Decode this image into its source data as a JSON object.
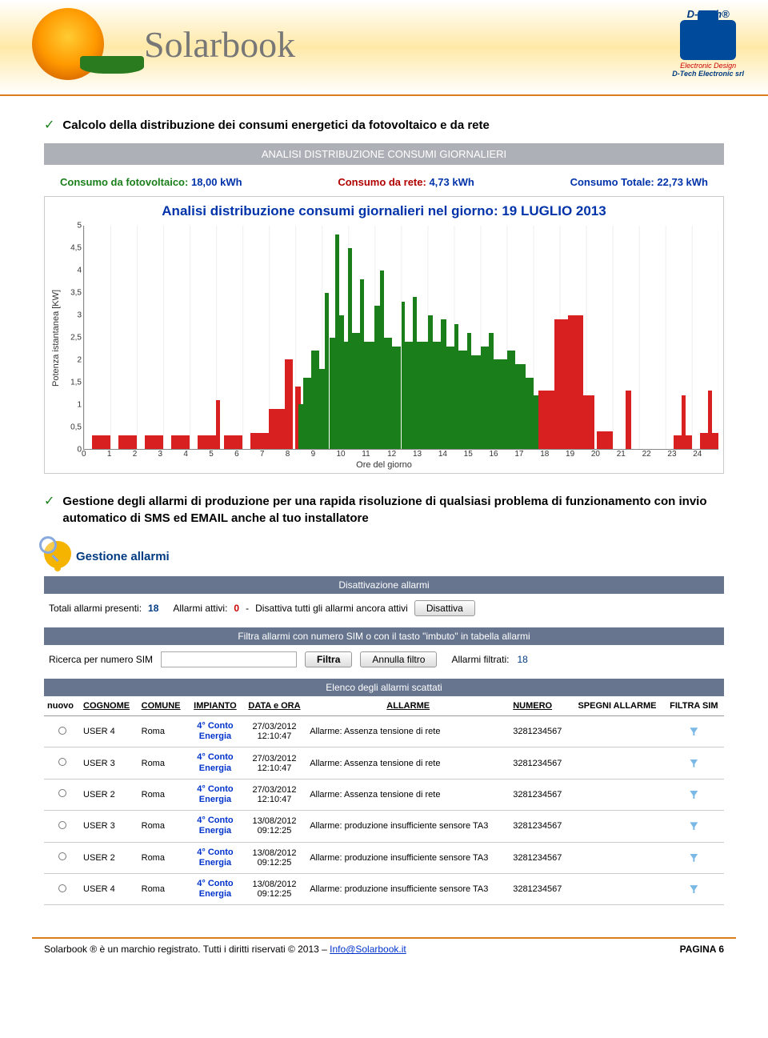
{
  "header": {
    "brand": "Solarbook",
    "right_brand_1": "D-Tech®",
    "right_brand_2": "Electronic Design",
    "right_brand_3": "D-Tech Electronic srl"
  },
  "bullets": {
    "b1": "Calcolo della distribuzione dei consumi energetici da fotovoltaico e da rete",
    "b2": "Gestione degli allarmi di produzione per una rapida risoluzione di qualsiasi problema di funzionamento con invio automatico di SMS ed EMAIL anche al tuo installatore"
  },
  "analysis": {
    "banner": "ANALISI DISTRIBUZIONE CONSUMI GIORNALIERI",
    "pv_label": "Consumo da fotovoltaico:",
    "pv_value": "18,00 kWh",
    "grid_label": "Consumo da rete:",
    "grid_value": "4,73 kWh",
    "total_label": "Consumo Totale:",
    "total_value": "22,73 kWh"
  },
  "chart": {
    "type": "stacked-area-bar",
    "title": "Analisi distribuzione consumi giornalieri nel giorno: 19 LUGLIO 2013",
    "ylabel": "Potenza istantanea [KW]",
    "xlabel": "Ore del giorno",
    "xlim": [
      0,
      24
    ],
    "ylim": [
      0,
      5
    ],
    "ytick_step": 0.5,
    "yticks": [
      "0",
      "0,5",
      "1",
      "1,5",
      "2",
      "2,5",
      "3",
      "3,5",
      "4",
      "4,5",
      "5"
    ],
    "xticks": [
      "0",
      "1",
      "2",
      "3",
      "4",
      "5",
      "6",
      "7",
      "8",
      "9",
      "10",
      "11",
      "12",
      "13",
      "14",
      "15",
      "16",
      "17",
      "18",
      "19",
      "20",
      "21",
      "22",
      "23",
      "24"
    ],
    "grid_color": "#eeeeee",
    "series": [
      {
        "name": "rete",
        "color": "#d82020"
      },
      {
        "name": "fotovoltaico",
        "color": "#1a7f1a"
      }
    ],
    "red_bars": [
      {
        "x": 0.3,
        "w": 0.7,
        "h": 0.3
      },
      {
        "x": 1.3,
        "w": 0.7,
        "h": 0.3
      },
      {
        "x": 2.3,
        "w": 0.7,
        "h": 0.3
      },
      {
        "x": 3.3,
        "w": 0.7,
        "h": 0.3
      },
      {
        "x": 4.3,
        "w": 0.7,
        "h": 0.3
      },
      {
        "x": 5.3,
        "w": 0.7,
        "h": 0.3
      },
      {
        "x": 5.0,
        "w": 0.15,
        "h": 1.1
      },
      {
        "x": 6.3,
        "w": 0.7,
        "h": 0.35
      },
      {
        "x": 7.0,
        "w": 0.6,
        "h": 0.9
      },
      {
        "x": 7.6,
        "w": 0.3,
        "h": 2.0
      },
      {
        "x": 8.0,
        "w": 0.2,
        "h": 1.4
      },
      {
        "x": 17.2,
        "w": 0.6,
        "h": 1.3
      },
      {
        "x": 17.8,
        "w": 0.5,
        "h": 2.9
      },
      {
        "x": 18.3,
        "w": 0.6,
        "h": 3.0
      },
      {
        "x": 18.9,
        "w": 0.4,
        "h": 1.2
      },
      {
        "x": 19.4,
        "w": 0.6,
        "h": 0.4
      },
      {
        "x": 20.5,
        "w": 0.2,
        "h": 1.3
      },
      {
        "x": 22.3,
        "w": 0.7,
        "h": 0.3
      },
      {
        "x": 22.6,
        "w": 0.15,
        "h": 1.2
      },
      {
        "x": 23.3,
        "w": 0.7,
        "h": 0.35
      },
      {
        "x": 23.6,
        "w": 0.15,
        "h": 1.3
      }
    ],
    "green_bars": [
      {
        "x": 8.1,
        "w": 0.2,
        "h": 1.0
      },
      {
        "x": 8.3,
        "w": 0.3,
        "h": 1.6
      },
      {
        "x": 8.6,
        "w": 0.3,
        "h": 2.2
      },
      {
        "x": 8.9,
        "w": 0.2,
        "h": 1.8
      },
      {
        "x": 9.1,
        "w": 0.15,
        "h": 3.5
      },
      {
        "x": 9.3,
        "w": 0.2,
        "h": 2.5
      },
      {
        "x": 9.5,
        "w": 0.15,
        "h": 4.8
      },
      {
        "x": 9.65,
        "w": 0.2,
        "h": 3.0
      },
      {
        "x": 9.85,
        "w": 0.15,
        "h": 2.4
      },
      {
        "x": 10.0,
        "w": 0.15,
        "h": 4.5
      },
      {
        "x": 10.15,
        "w": 0.3,
        "h": 2.6
      },
      {
        "x": 10.45,
        "w": 0.15,
        "h": 3.8
      },
      {
        "x": 10.6,
        "w": 0.4,
        "h": 2.4
      },
      {
        "x": 11.0,
        "w": 0.2,
        "h": 3.2
      },
      {
        "x": 11.2,
        "w": 0.15,
        "h": 4.0
      },
      {
        "x": 11.35,
        "w": 0.3,
        "h": 2.5
      },
      {
        "x": 11.65,
        "w": 0.35,
        "h": 2.3
      },
      {
        "x": 12.0,
        "w": 0.15,
        "h": 3.3
      },
      {
        "x": 12.15,
        "w": 0.3,
        "h": 2.4
      },
      {
        "x": 12.45,
        "w": 0.15,
        "h": 3.4
      },
      {
        "x": 12.6,
        "w": 0.4,
        "h": 2.4
      },
      {
        "x": 13.0,
        "w": 0.2,
        "h": 3.0
      },
      {
        "x": 13.2,
        "w": 0.3,
        "h": 2.4
      },
      {
        "x": 13.5,
        "w": 0.2,
        "h": 2.9
      },
      {
        "x": 13.7,
        "w": 0.3,
        "h": 2.3
      },
      {
        "x": 14.0,
        "w": 0.15,
        "h": 2.8
      },
      {
        "x": 14.15,
        "w": 0.35,
        "h": 2.2
      },
      {
        "x": 14.5,
        "w": 0.15,
        "h": 2.6
      },
      {
        "x": 14.65,
        "w": 0.35,
        "h": 2.1
      },
      {
        "x": 15.0,
        "w": 0.3,
        "h": 2.3
      },
      {
        "x": 15.3,
        "w": 0.2,
        "h": 2.6
      },
      {
        "x": 15.5,
        "w": 0.5,
        "h": 2.0
      },
      {
        "x": 16.0,
        "w": 0.3,
        "h": 2.2
      },
      {
        "x": 16.3,
        "w": 0.4,
        "h": 1.9
      },
      {
        "x": 16.7,
        "w": 0.3,
        "h": 1.6
      },
      {
        "x": 17.0,
        "w": 0.2,
        "h": 1.2
      }
    ]
  },
  "alarms": {
    "title": "Gestione allarmi",
    "section_disable": "Disattivazione allarmi",
    "total_label": "Totali allarmi presenti:",
    "total_value": "18",
    "active_label": "Allarmi attivi:",
    "active_value": "0",
    "disable_text": "Disattiva tutti gli allarmi ancora attivi",
    "disable_btn": "Disattiva",
    "section_filter": "Filtra allarmi con numero SIM o con il tasto \"imbuto\" in tabella allarmi",
    "search_label": "Ricerca per numero SIM",
    "filter_btn": "Filtra",
    "clear_btn": "Annulla filtro",
    "filtered_label": "Allarmi filtrati:",
    "filtered_value": "18",
    "section_list": "Elenco degli allarmi scattati",
    "columns": {
      "c0": "nuovo",
      "c1": "COGNOME",
      "c2": "COMUNE",
      "c3": "IMPIANTO",
      "c4": "DATA e ORA",
      "c5": "ALLARME",
      "c6": "NUMERO",
      "c7": "SPEGNI ALLARME",
      "c8": "FILTRA SIM"
    },
    "impianto_text": "4° Conto Energia",
    "rows": [
      {
        "cognome": "USER 4",
        "comune": "Roma",
        "data": "27/03/2012",
        "ora": "12:10:47",
        "allarme": "Allarme: Assenza tensione di rete",
        "numero": "3281234567"
      },
      {
        "cognome": "USER 3",
        "comune": "Roma",
        "data": "27/03/2012",
        "ora": "12:10:47",
        "allarme": "Allarme: Assenza tensione di rete",
        "numero": "3281234567"
      },
      {
        "cognome": "USER 2",
        "comune": "Roma",
        "data": "27/03/2012",
        "ora": "12:10:47",
        "allarme": "Allarme: Assenza tensione di rete",
        "numero": "3281234567"
      },
      {
        "cognome": "USER 3",
        "comune": "Roma",
        "data": "13/08/2012",
        "ora": "09:12:25",
        "allarme": "Allarme: produzione insufficiente sensore TA3",
        "numero": "3281234567"
      },
      {
        "cognome": "USER 2",
        "comune": "Roma",
        "data": "13/08/2012",
        "ora": "09:12:25",
        "allarme": "Allarme: produzione insufficiente sensore TA3",
        "numero": "3281234567"
      },
      {
        "cognome": "USER 4",
        "comune": "Roma",
        "data": "13/08/2012",
        "ora": "09:12:25",
        "allarme": "Allarme: produzione insufficiente sensore TA3",
        "numero": "3281234567"
      }
    ]
  },
  "footer": {
    "left_a": "Solarbook ® è un marchio registrato. Tutti i diritti riservati © 2013 – ",
    "link": "Info@Solarbook.it",
    "right": "PAGINA 6"
  }
}
